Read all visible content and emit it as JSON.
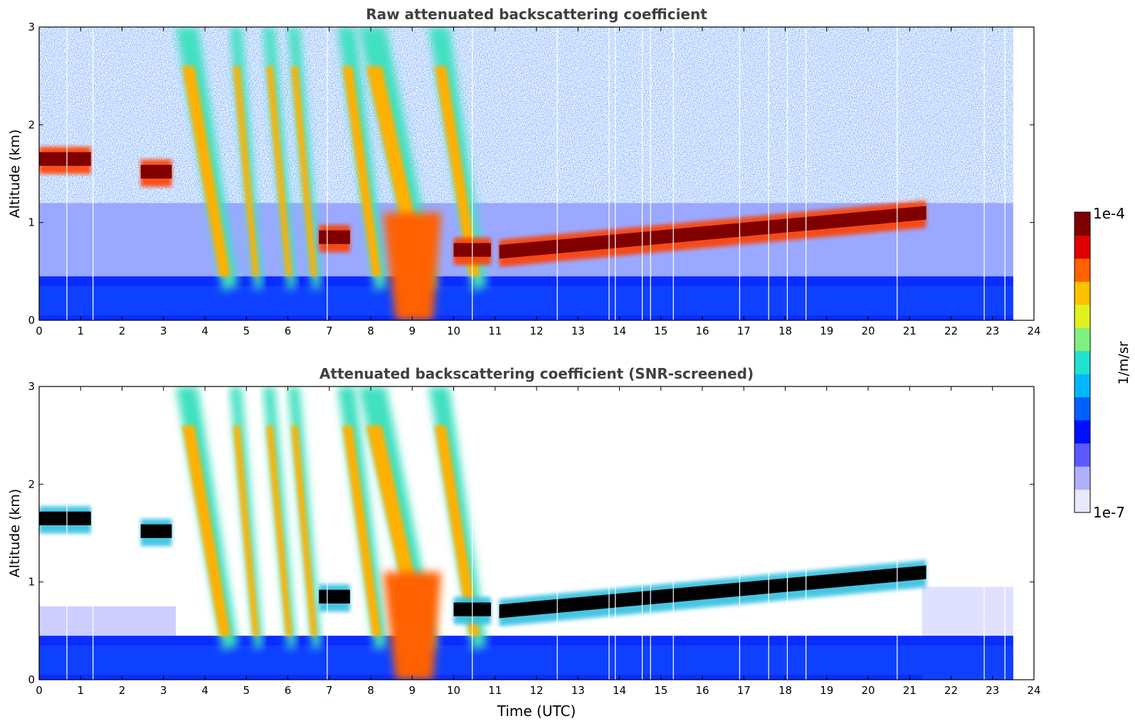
{
  "chart_data": [
    {
      "type": "heatmap",
      "title": "Raw attenuated backscattering coefficient",
      "xlabel": "",
      "ylabel": "Altitude (km)",
      "xlim": [
        0,
        24
      ],
      "ylim": [
        0,
        3
      ],
      "x_ticks": [
        "0",
        "1",
        "2",
        "3",
        "4",
        "5",
        "6",
        "7",
        "8",
        "9",
        "10",
        "11",
        "12",
        "13",
        "14",
        "15",
        "16",
        "17",
        "18",
        "19",
        "20",
        "21",
        "22",
        "23",
        "24"
      ],
      "y_ticks": [
        "0",
        "1",
        "2",
        "3"
      ],
      "data_end_time": 23.5,
      "features": {
        "boundary_layer_top_km": 0.45,
        "cloud_layers": [
          {
            "t_start": 0.0,
            "t_end": 1.25,
            "altitude_km": 1.65
          },
          {
            "t_start": 2.45,
            "t_end": 3.2,
            "altitude_km": 1.52
          },
          {
            "t_start": 6.75,
            "t_end": 7.5,
            "altitude_km": 0.85
          },
          {
            "t_start": 10.0,
            "t_end": 10.9,
            "altitude_km": 0.72
          },
          {
            "t_start": 11.1,
            "t_end": 21.4,
            "altitude_km_start": 0.7,
            "altitude_km_end": 1.1
          }
        ],
        "precipitation_fall_streaks": [
          {
            "t_start": 3.3,
            "t_end": 4.8
          },
          {
            "t_start": 4.6,
            "t_end": 5.4
          },
          {
            "t_start": 5.4,
            "t_end": 6.2
          },
          {
            "t_start": 6.0,
            "t_end": 6.8
          },
          {
            "t_start": 7.2,
            "t_end": 8.4
          },
          {
            "t_start": 7.7,
            "t_end": 9.6
          },
          {
            "t_start": 9.4,
            "t_end": 10.8
          }
        ],
        "missing_profiles_utc": [
          0.67,
          1.3,
          6.95,
          10.45,
          12.5,
          13.75,
          13.9,
          14.55,
          14.75,
          15.3,
          16.9,
          17.6,
          18.05,
          18.5,
          20.7,
          22.8,
          23.3
        ]
      }
    },
    {
      "type": "heatmap",
      "title": "Attenuated backscattering coefficient (SNR-screened)",
      "xlabel": "Time (UTC)",
      "ylabel": "Altitude (km)",
      "xlim": [
        0,
        24
      ],
      "ylim": [
        0,
        3
      ],
      "x_ticks": [
        "0",
        "1",
        "2",
        "3",
        "4",
        "5",
        "6",
        "7",
        "8",
        "9",
        "10",
        "11",
        "12",
        "13",
        "14",
        "15",
        "16",
        "17",
        "18",
        "19",
        "20",
        "21",
        "22",
        "23",
        "24"
      ],
      "y_ticks": [
        "0",
        "1",
        "2",
        "3"
      ],
      "data_end_time": 23.5
    }
  ],
  "colorbar": {
    "label": "1/m/sr",
    "max_label": "1e-4",
    "min_label": "1e-7",
    "colors": [
      "#e8e8ff",
      "#b0b0ff",
      "#5a5aff",
      "#0010ff",
      "#0060ff",
      "#00b8ff",
      "#20e0d0",
      "#80f080",
      "#e0f020",
      "#ffc000",
      "#ff6000",
      "#e00000",
      "#800000"
    ]
  }
}
